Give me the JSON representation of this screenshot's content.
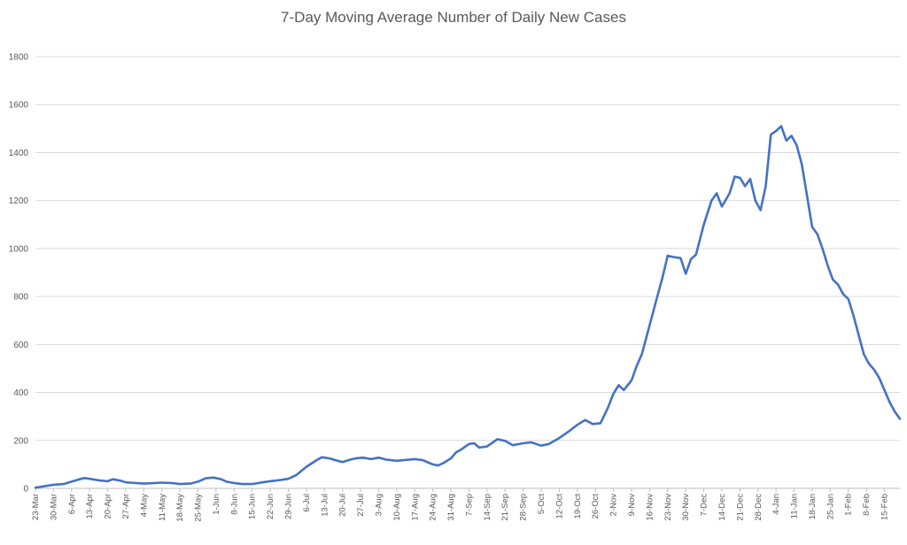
{
  "chart_data": {
    "type": "line",
    "title": "7-Day Moving Average Number of Daily New Cases",
    "xlabel": "",
    "ylabel": "",
    "ylim": [
      0,
      1800
    ],
    "yticks": [
      0,
      200,
      400,
      600,
      800,
      1000,
      1200,
      1400,
      1600,
      1800
    ],
    "grid": "horizontal",
    "x_start": "2020-03-23",
    "x_end": "2021-02-21",
    "x_tick_labels": [
      "23-Mar",
      "30-Mar",
      "6-Apr",
      "13-Apr",
      "20-Apr",
      "27-Apr",
      "4-May",
      "11-May",
      "18-May",
      "25-May",
      "1-Jun",
      "8-Jun",
      "15-Jun",
      "22-Jun",
      "29-Jun",
      "6-Jul",
      "13-Jul",
      "20-Jul",
      "27-Jul",
      "3-Aug",
      "10-Aug",
      "17-Aug",
      "24-Aug",
      "31-Aug",
      "7-Sep",
      "14-Sep",
      "21-Sep",
      "28-Sep",
      "5-Oct",
      "12-Oct",
      "19-Oct",
      "26-Oct",
      "2-Nov",
      "9-Nov",
      "16-Nov",
      "23-Nov",
      "30-Nov",
      "7-Dec",
      "14-Dec",
      "21-Dec",
      "28-Dec",
      "4-Jan",
      "11-Jan",
      "18-Jan",
      "25-Jan",
      "1-Feb",
      "8-Feb",
      "15-Feb"
    ],
    "series": [
      {
        "color": "#4472C4",
        "points": [
          [
            "2020-03-23",
            3
          ],
          [
            "2020-03-26",
            8
          ],
          [
            "2020-03-30",
            15
          ],
          [
            "2020-04-03",
            18
          ],
          [
            "2020-04-06",
            28
          ],
          [
            "2020-04-09",
            38
          ],
          [
            "2020-04-11",
            43
          ],
          [
            "2020-04-13",
            40
          ],
          [
            "2020-04-17",
            33
          ],
          [
            "2020-04-20",
            30
          ],
          [
            "2020-04-22",
            38
          ],
          [
            "2020-04-25",
            32
          ],
          [
            "2020-04-27",
            25
          ],
          [
            "2020-05-01",
            22
          ],
          [
            "2020-05-04",
            20
          ],
          [
            "2020-05-08",
            22
          ],
          [
            "2020-05-11",
            24
          ],
          [
            "2020-05-15",
            22
          ],
          [
            "2020-05-18",
            18
          ],
          [
            "2020-05-22",
            20
          ],
          [
            "2020-05-25",
            28
          ],
          [
            "2020-05-28",
            42
          ],
          [
            "2020-05-31",
            45
          ],
          [
            "2020-06-03",
            38
          ],
          [
            "2020-06-05",
            28
          ],
          [
            "2020-06-08",
            22
          ],
          [
            "2020-06-11",
            18
          ],
          [
            "2020-06-15",
            18
          ],
          [
            "2020-06-19",
            25
          ],
          [
            "2020-06-22",
            30
          ],
          [
            "2020-06-26",
            35
          ],
          [
            "2020-06-29",
            40
          ],
          [
            "2020-07-02",
            55
          ],
          [
            "2020-07-06",
            90
          ],
          [
            "2020-07-10",
            118
          ],
          [
            "2020-07-12",
            130
          ],
          [
            "2020-07-15",
            125
          ],
          [
            "2020-07-18",
            115
          ],
          [
            "2020-07-20",
            110
          ],
          [
            "2020-07-23",
            120
          ],
          [
            "2020-07-25",
            125
          ],
          [
            "2020-07-28",
            128
          ],
          [
            "2020-07-31",
            122
          ],
          [
            "2020-08-03",
            128
          ],
          [
            "2020-08-06",
            120
          ],
          [
            "2020-08-10",
            115
          ],
          [
            "2020-08-13",
            118
          ],
          [
            "2020-08-17",
            122
          ],
          [
            "2020-08-20",
            118
          ],
          [
            "2020-08-24",
            100
          ],
          [
            "2020-08-26",
            95
          ],
          [
            "2020-08-28",
            105
          ],
          [
            "2020-08-31",
            125
          ],
          [
            "2020-09-02",
            150
          ],
          [
            "2020-09-04",
            162
          ],
          [
            "2020-09-07",
            185
          ],
          [
            "2020-09-09",
            188
          ],
          [
            "2020-09-11",
            170
          ],
          [
            "2020-09-14",
            175
          ],
          [
            "2020-09-18",
            205
          ],
          [
            "2020-09-21",
            198
          ],
          [
            "2020-09-24",
            180
          ],
          [
            "2020-09-28",
            188
          ],
          [
            "2020-10-01",
            192
          ],
          [
            "2020-10-05",
            178
          ],
          [
            "2020-10-08",
            185
          ],
          [
            "2020-10-12",
            210
          ],
          [
            "2020-10-16",
            240
          ],
          [
            "2020-10-19",
            265
          ],
          [
            "2020-10-22",
            285
          ],
          [
            "2020-10-25",
            268
          ],
          [
            "2020-10-28",
            272
          ],
          [
            "2020-10-31",
            340
          ],
          [
            "2020-11-02",
            395
          ],
          [
            "2020-11-04",
            430
          ],
          [
            "2020-11-06",
            410
          ],
          [
            "2020-11-09",
            450
          ],
          [
            "2020-11-11",
            510
          ],
          [
            "2020-11-13",
            560
          ],
          [
            "2020-11-16",
            680
          ],
          [
            "2020-11-19",
            800
          ],
          [
            "2020-11-21",
            880
          ],
          [
            "2020-11-23",
            970
          ],
          [
            "2020-11-25",
            965
          ],
          [
            "2020-11-28",
            960
          ],
          [
            "2020-11-30",
            895
          ],
          [
            "2020-12-02",
            955
          ],
          [
            "2020-12-04",
            975
          ],
          [
            "2020-12-07",
            1100
          ],
          [
            "2020-12-10",
            1200
          ],
          [
            "2020-12-12",
            1230
          ],
          [
            "2020-12-14",
            1175
          ],
          [
            "2020-12-17",
            1230
          ],
          [
            "2020-12-19",
            1300
          ],
          [
            "2020-12-21",
            1295
          ],
          [
            "2020-12-23",
            1260
          ],
          [
            "2020-12-25",
            1290
          ],
          [
            "2020-12-27",
            1200
          ],
          [
            "2020-12-29",
            1160
          ],
          [
            "2020-12-31",
            1260
          ],
          [
            "2021-01-02",
            1475
          ],
          [
            "2021-01-04",
            1490
          ],
          [
            "2021-01-06",
            1510
          ],
          [
            "2021-01-08",
            1450
          ],
          [
            "2021-01-10",
            1470
          ],
          [
            "2021-01-12",
            1430
          ],
          [
            "2021-01-14",
            1350
          ],
          [
            "2021-01-16",
            1220
          ],
          [
            "2021-01-18",
            1090
          ],
          [
            "2021-01-20",
            1060
          ],
          [
            "2021-01-22",
            1000
          ],
          [
            "2021-01-24",
            930
          ],
          [
            "2021-01-26",
            870
          ],
          [
            "2021-01-28",
            850
          ],
          [
            "2021-01-30",
            810
          ],
          [
            "2021-02-01",
            790
          ],
          [
            "2021-02-03",
            720
          ],
          [
            "2021-02-05",
            640
          ],
          [
            "2021-02-07",
            560
          ],
          [
            "2021-02-09",
            520
          ],
          [
            "2021-02-11",
            495
          ],
          [
            "2021-02-13",
            460
          ],
          [
            "2021-02-15",
            410
          ],
          [
            "2021-02-17",
            360
          ],
          [
            "2021-02-19",
            320
          ],
          [
            "2021-02-21",
            290
          ]
        ]
      }
    ]
  }
}
